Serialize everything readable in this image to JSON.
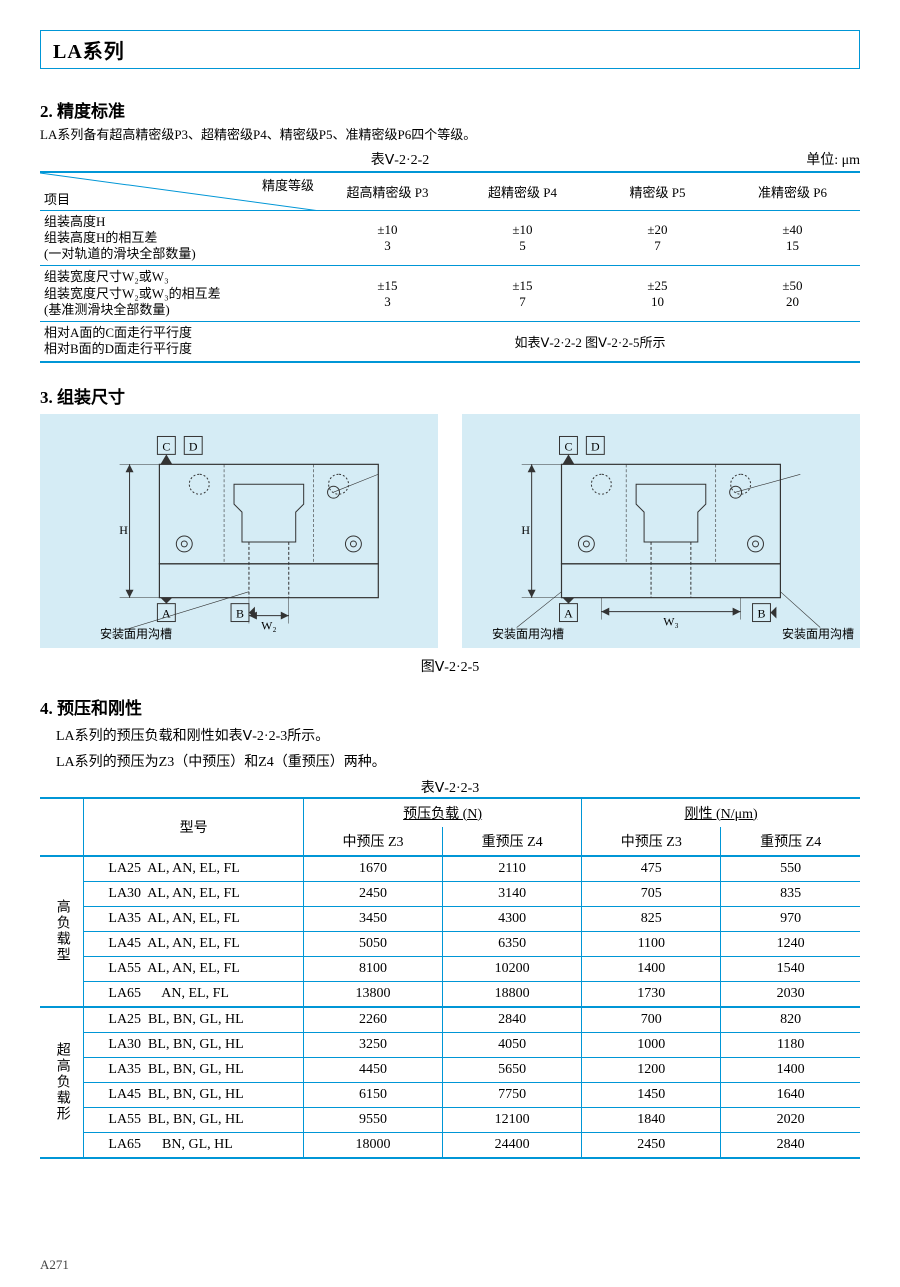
{
  "title": "LA系列",
  "sec2": {
    "head": "2.  精度标准",
    "desc": "LA系列备有超高精密级P3、超精密级P4、精密级P5、准精密级P6四个等级。",
    "caption": "表Ⅴ-2·2-2",
    "unit": "单位:  μm",
    "diag_item": "项目",
    "diag_grade": "精度等级",
    "headers": [
      "超高精密级   P3",
      "超精密级   P4",
      "精密级   P5",
      "准精密级   P6"
    ],
    "rows": [
      {
        "label": "组装高度H\n组装高度H的相互差\n  (一对轨道的滑块全部数量)",
        "vals": [
          "±10\n3",
          "±10\n5",
          "±20\n7",
          "±40\n15"
        ]
      },
      {
        "label": "组装宽度尺寸W₂或W₃\n组装宽度尺寸W₂或W₃的相互差\n  (基准测滑块全部数量)",
        "vals": [
          "±15\n3",
          "±15\n7",
          "±25\n10",
          "±50\n20"
        ]
      },
      {
        "label": "相对A面的C面走行平行度\n相对B面的D面走行平行度",
        "span": "如表Ⅴ-2·2-2   图Ⅴ-2·2-5所示"
      }
    ]
  },
  "sec3": {
    "head": "3.  组装尺寸"
  },
  "fig": {
    "caption": "图Ⅴ-2·2-5",
    "left": {
      "groove": "安装面用沟槽",
      "W": "W₂",
      "H": "H",
      "A": "A",
      "B": "B",
      "C": "C",
      "D": "D"
    },
    "right": {
      "groove_l": "安装面用沟槽",
      "groove_r": "安装面用沟槽",
      "W": "W₃",
      "H": "H",
      "A": "A",
      "B": "B",
      "C": "C",
      "D": "D"
    }
  },
  "sec4": {
    "head": "4. 预压和刚性",
    "line1": "LA系列的预压负载和刚性如表Ⅴ-2·2-3所示。",
    "line2": "LA系列的预压为Z3（中预压）和Z4（重预压）两种。",
    "caption": "表Ⅴ-2·2-3",
    "hdr_model": "型号",
    "hdr_preload": "预压负载   (N)",
    "hdr_rigid": "刚性   (N/μm)",
    "hdr_z3": "中预压   Z3",
    "hdr_z4": "重预压   Z4",
    "groups": [
      {
        "label": "高负载型",
        "rows": [
          {
            "m": "LA25  AL, AN, EL, FL",
            "v": [
              "1670",
              "2110",
              "475",
              "550"
            ]
          },
          {
            "m": "LA30  AL, AN, EL, FL",
            "v": [
              "2450",
              "3140",
              "705",
              "835"
            ]
          },
          {
            "m": "LA35  AL, AN, EL, FL",
            "v": [
              "3450",
              "4300",
              "825",
              "970"
            ]
          },
          {
            "m": "LA45  AL, AN, EL, FL",
            "v": [
              "5050",
              "6350",
              "1100",
              "1240"
            ]
          },
          {
            "m": "LA55  AL, AN, EL, FL",
            "v": [
              "8100",
              "10200",
              "1400",
              "1540"
            ]
          },
          {
            "m": "LA65      AN, EL, FL",
            "v": [
              "13800",
              "18800",
              "1730",
              "2030"
            ]
          }
        ]
      },
      {
        "label": "超高负载形",
        "rows": [
          {
            "m": "LA25  BL, BN, GL, HL",
            "v": [
              "2260",
              "2840",
              "700",
              "820"
            ]
          },
          {
            "m": "LA30  BL, BN, GL, HL",
            "v": [
              "3250",
              "4050",
              "1000",
              "1180"
            ]
          },
          {
            "m": "LA35  BL, BN, GL, HL",
            "v": [
              "4450",
              "5650",
              "1200",
              "1400"
            ]
          },
          {
            "m": "LA45  BL, BN, GL, HL",
            "v": [
              "6150",
              "7750",
              "1450",
              "1640"
            ]
          },
          {
            "m": "LA55  BL, BN, GL, HL",
            "v": [
              "9550",
              "12100",
              "1840",
              "2020"
            ]
          },
          {
            "m": "LA65      BN, GL, HL",
            "v": [
              "18000",
              "24400",
              "2450",
              "2840"
            ]
          }
        ]
      }
    ]
  },
  "page": "A271",
  "colors": {
    "accent": "#0096d6",
    "diag_bg": "#d5ecf5"
  }
}
